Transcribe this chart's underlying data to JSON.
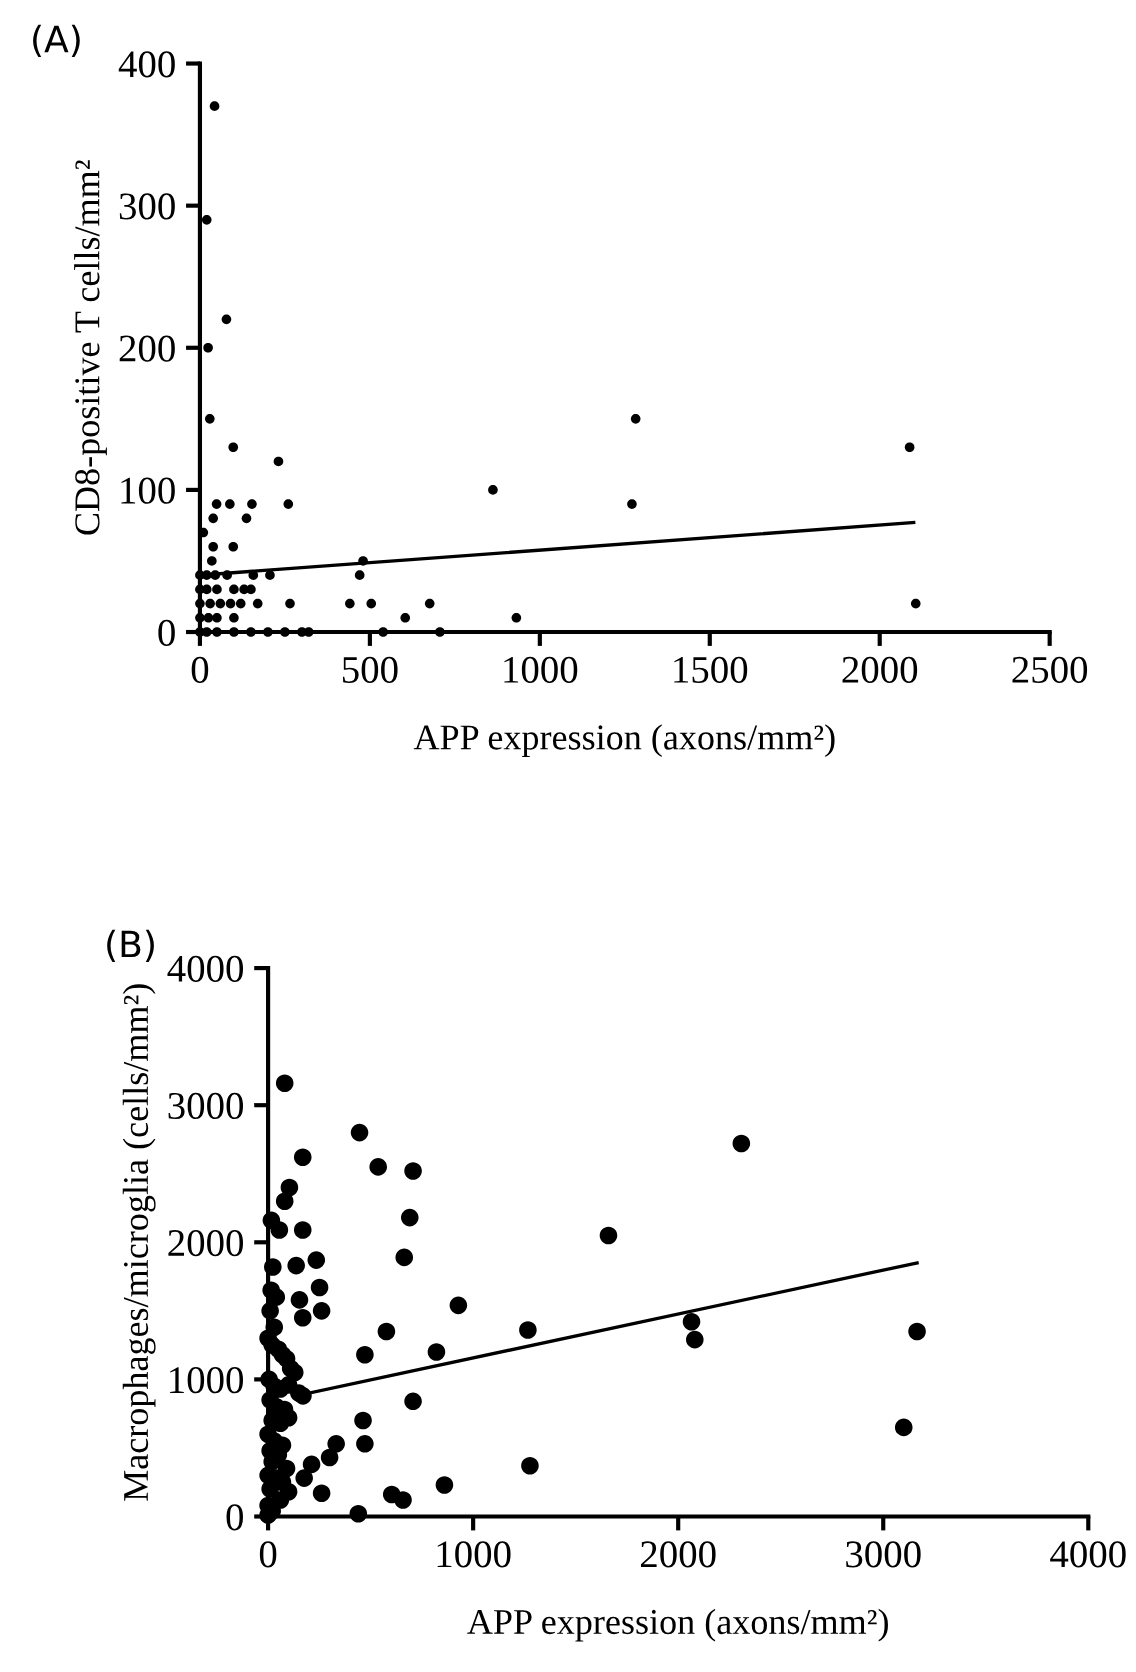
{
  "chart_data": [
    {
      "type": "scatter",
      "annotations": [
        "(A)"
      ],
      "xlabel": "APP expression (axons/mm²)",
      "ylabel": "CD8-positive T cells/mm²",
      "xlim": [
        0,
        2500
      ],
      "ylim": [
        0,
        400
      ],
      "xticks": [
        0,
        500,
        1000,
        1500,
        2000,
        2500
      ],
      "yticks": [
        0,
        100,
        200,
        300,
        400
      ],
      "grid": false,
      "legend": false,
      "series": [
        {
          "marker": "circle",
          "color": "#000000",
          "x": [
            43,
            20,
            78,
            24,
            29,
            98,
            231,
            260,
            88,
            49,
            153,
            137,
            39,
            10,
            98,
            39,
            35,
            480,
            470,
            206,
            157,
            0,
            20,
            45,
            80,
            862,
            265,
            441,
            504,
            676,
            604,
            931,
            1282,
            1271,
            2088,
            2106,
            0,
            20,
            50,
            100,
            130,
            150,
            0,
            30,
            60,
            90,
            120,
            170,
            0,
            25,
            50,
            100,
            0,
            20,
            50,
            100,
            150,
            200,
            250,
            300,
            320,
            539,
            706
          ],
          "values": [
            370,
            290,
            220,
            200,
            150,
            130,
            120,
            90,
            90,
            90,
            90,
            80,
            80,
            70,
            60,
            60,
            50,
            50,
            40,
            40,
            40,
            40,
            40,
            40,
            40,
            100,
            20,
            20,
            20,
            20,
            10,
            10,
            150,
            90,
            130,
            20,
            30,
            30,
            30,
            30,
            30,
            30,
            20,
            20,
            20,
            20,
            20,
            20,
            10,
            10,
            10,
            10,
            0,
            0,
            0,
            0,
            0,
            0,
            0,
            0,
            0,
            0,
            0
          ]
        },
        {
          "type": "line",
          "marker": "none",
          "color": "#000000",
          "x": [
            0,
            2100
          ],
          "values": [
            40,
            77
          ]
        }
      ]
    },
    {
      "type": "scatter",
      "annotations": [
        "(B)"
      ],
      "xlabel": "APP expression (axons/mm²)",
      "ylabel": "Macrophages/microglia (cells/mm²)",
      "xlim": [
        0,
        4000
      ],
      "ylim": [
        0,
        4000
      ],
      "xticks": [
        0,
        1000,
        2000,
        3000,
        4000
      ],
      "yticks": [
        0,
        1000,
        2000,
        3000,
        4000
      ],
      "grid": false,
      "legend": false,
      "series": [
        {
          "marker": "circle",
          "color": "#000000",
          "x": [
            81,
            169,
            446,
            537,
            707,
            691,
            664,
            104,
            81,
            16,
            55,
            169,
            235,
            137,
            251,
            261,
            153,
            169,
            928,
            577,
            821,
            472,
            1267,
            707,
            463,
            472,
            332,
            300,
            212,
            176,
            261,
            440,
            603,
            658,
            860,
            1277,
            23,
            15,
            40,
            10,
            30,
            0,
            20,
            50,
            70,
            90,
            110,
            130,
            5,
            30,
            60,
            100,
            150,
            170,
            10,
            40,
            80,
            20,
            60,
            100,
            0,
            30,
            70,
            10,
            50,
            20,
            90,
            0,
            40,
            70,
            10,
            100,
            60,
            0,
            20,
            0,
            1660,
            2308,
            2065,
            2081,
            3165,
            3100
          ],
          "values": [
            3160,
            2620,
            2800,
            2550,
            2520,
            2180,
            1890,
            2400,
            2300,
            2160,
            2090,
            2090,
            1870,
            1830,
            1670,
            1500,
            1580,
            1450,
            1540,
            1350,
            1200,
            1180,
            1360,
            840,
            700,
            530,
            530,
            430,
            380,
            280,
            170,
            20,
            160,
            120,
            230,
            370,
            1820,
            1650,
            1600,
            1500,
            1380,
            1300,
            1250,
            1220,
            1180,
            1150,
            1080,
            1050,
            1000,
            950,
            930,
            960,
            900,
            880,
            850,
            800,
            780,
            700,
            680,
            720,
            600,
            550,
            520,
            480,
            450,
            400,
            350,
            300,
            280,
            250,
            200,
            180,
            120,
            80,
            40,
            10,
            2050,
            2720,
            1420,
            1290,
            1350,
            650
          ]
        },
        {
          "type": "line",
          "color": "#000000",
          "x": [
            200,
            3165
          ],
          "values": [
            900,
            1850
          ]
        }
      ]
    }
  ]
}
